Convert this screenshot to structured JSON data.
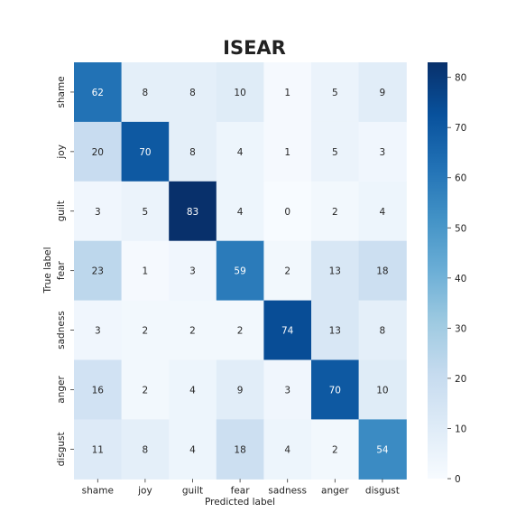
{
  "chart_data": {
    "type": "heatmap",
    "title": "ISEAR",
    "xlabel": "Predicted label",
    "ylabel": "True label",
    "x_categories": [
      "shame",
      "joy",
      "guilt",
      "fear",
      "sadness",
      "anger",
      "disgust"
    ],
    "y_categories": [
      "shame",
      "joy",
      "guilt",
      "fear",
      "sadness",
      "anger",
      "disgust"
    ],
    "values": [
      [
        62,
        8,
        8,
        10,
        1,
        5,
        9
      ],
      [
        20,
        70,
        8,
        4,
        1,
        5,
        3
      ],
      [
        3,
        5,
        83,
        4,
        0,
        2,
        4
      ],
      [
        23,
        1,
        3,
        59,
        2,
        13,
        18
      ],
      [
        3,
        2,
        2,
        2,
        74,
        13,
        8
      ],
      [
        16,
        2,
        4,
        9,
        3,
        70,
        10
      ],
      [
        11,
        8,
        4,
        18,
        4,
        2,
        54
      ]
    ],
    "colorbar": {
      "min": 0,
      "max": 83,
      "ticks": [
        0,
        10,
        20,
        30,
        40,
        50,
        60,
        70,
        80
      ],
      "colormap": "Blues"
    }
  }
}
